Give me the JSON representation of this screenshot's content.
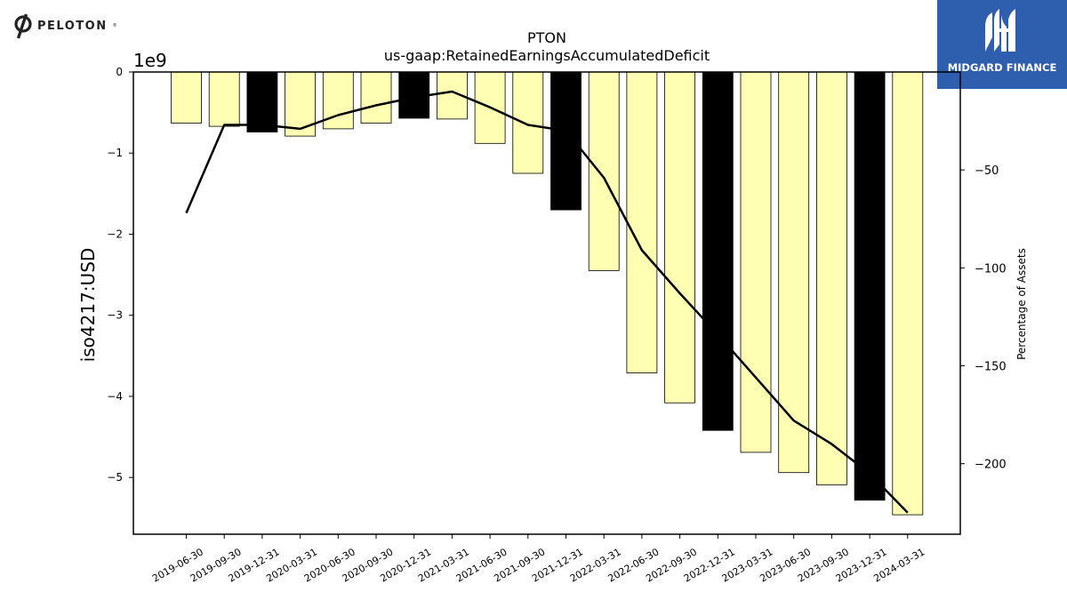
{
  "logos": {
    "left_brand": "PELOTON",
    "right_brand": "MIDGARD FINANCE"
  },
  "chart_data": {
    "type": "bar",
    "title": "PTON",
    "subtitle": "us-gaap:RetainedEarningsAccumulatedDeficit",
    "ylabel": "iso4217:USD",
    "y_offset_label": "1e9",
    "y2label": "Percentage of Assets",
    "ylim": [
      -5.7,
      0
    ],
    "y2lim": [
      -236,
      0
    ],
    "yticks": [
      0,
      -1,
      -2,
      -3,
      -4,
      -5
    ],
    "ytick_labels": [
      "0",
      "−1",
      "−2",
      "−3",
      "−4",
      "−5"
    ],
    "y2ticks": [
      -50,
      -100,
      -150,
      -200
    ],
    "y2tick_labels": [
      "−50",
      "−100",
      "−150",
      "−200"
    ],
    "categories": [
      "2019-06-30",
      "2019-09-30",
      "2019-12-31",
      "2020-03-31",
      "2020-06-30",
      "2020-09-30",
      "2020-12-31",
      "2021-03-31",
      "2021-06-30",
      "2021-09-30",
      "2021-12-31",
      "2022-03-31",
      "2022-06-30",
      "2022-09-30",
      "2022-12-31",
      "2023-03-31",
      "2023-06-30",
      "2023-09-30",
      "2023-12-31",
      "2024-03-31"
    ],
    "series": [
      {
        "type": "bar",
        "axis": "left",
        "values": [
          -0.63,
          -0.67,
          -0.74,
          -0.79,
          -0.7,
          -0.63,
          -0.57,
          -0.58,
          -0.88,
          -1.25,
          -1.7,
          -2.45,
          -3.71,
          -4.08,
          -4.42,
          -4.69,
          -4.94,
          -5.09,
          -5.28,
          -5.46
        ],
        "highlight": [
          false,
          false,
          true,
          false,
          false,
          false,
          true,
          false,
          false,
          false,
          true,
          false,
          false,
          false,
          true,
          false,
          false,
          false,
          true,
          false
        ],
        "color": "#ffffb3",
        "highlight_color": "#000000"
      },
      {
        "type": "line",
        "axis": "right",
        "values": [
          -72,
          -27,
          -27,
          -29,
          -22,
          -17,
          -13,
          -10,
          -18,
          -27,
          -30,
          -54,
          -91,
          -113,
          -134,
          -156,
          -178,
          -190,
          -205,
          -225
        ],
        "color": "#000000"
      }
    ]
  }
}
